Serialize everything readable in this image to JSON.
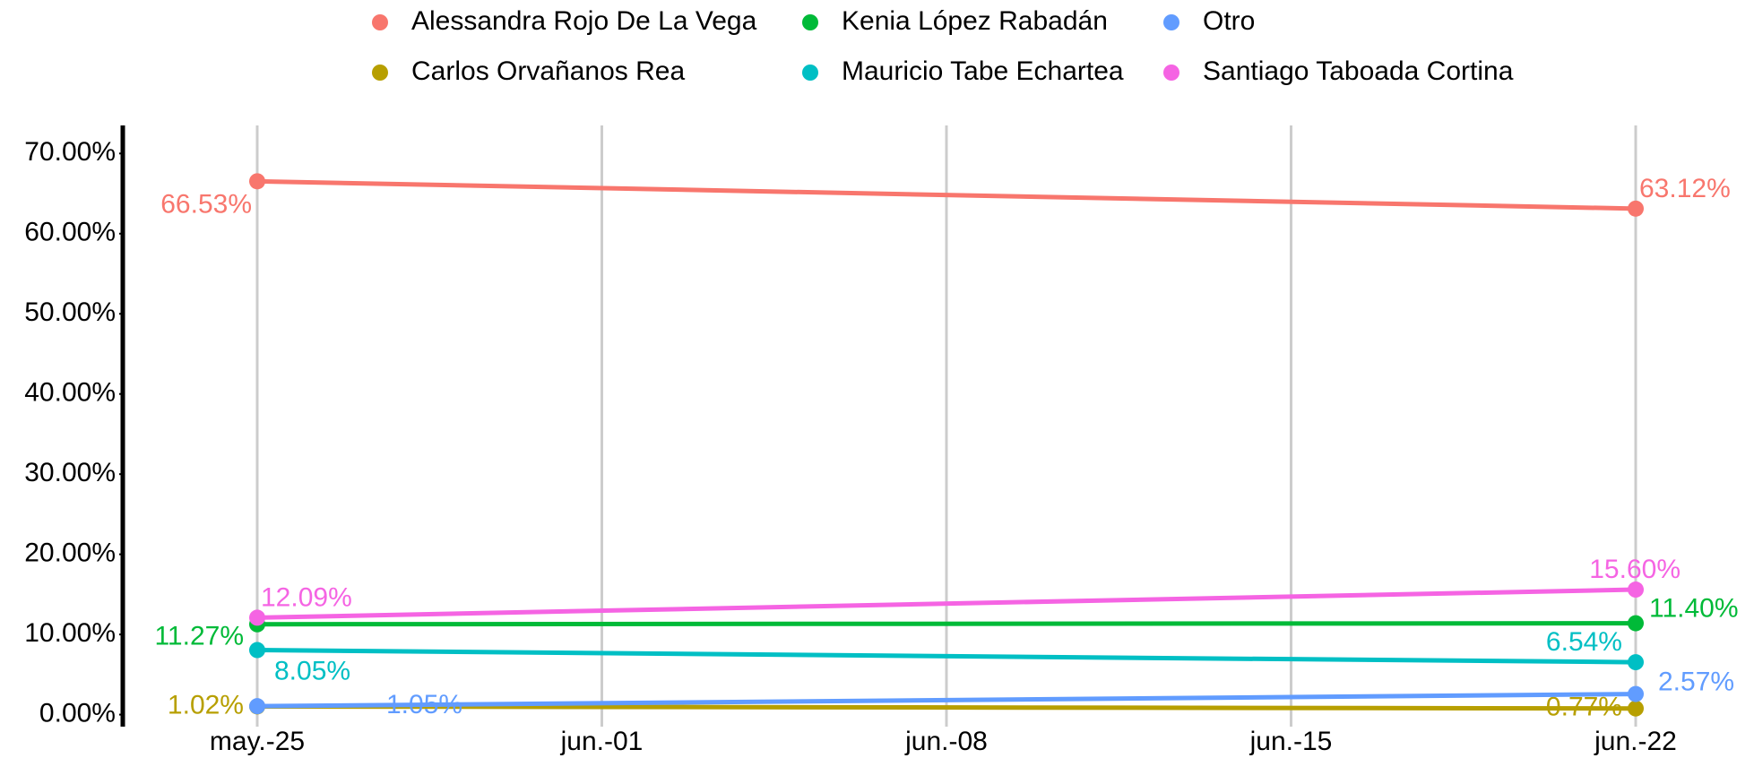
{
  "chart_data": {
    "type": "line",
    "x": [
      "may.-25",
      "jun.-22"
    ],
    "xticks": [
      "may.-25",
      "jun.-01",
      "jun.-08",
      "jun.-15",
      "jun.-22"
    ],
    "ylim": [
      -1.5,
      73.5
    ],
    "yticks": [
      {
        "value": 0,
        "label": "0.00%"
      },
      {
        "value": 10,
        "label": "10.00%"
      },
      {
        "value": 20,
        "label": "20.00%"
      },
      {
        "value": 30,
        "label": "30.00%"
      },
      {
        "value": 40,
        "label": "40.00%"
      },
      {
        "value": 50,
        "label": "50.00%"
      },
      {
        "value": 60,
        "label": "60.00%"
      },
      {
        "value": 70,
        "label": "70.00%"
      }
    ],
    "grid": true,
    "legend": "top",
    "series": [
      {
        "name": "Alessandra Rojo De La Vega",
        "color": "#F8766D",
        "values": [
          66.53,
          63.12
        ],
        "value_labels": [
          "66.53%",
          "63.12%"
        ]
      },
      {
        "name": "Carlos Orvañanos Rea",
        "color": "#B79F00",
        "values": [
          1.02,
          0.77
        ],
        "value_labels": [
          "1.02%",
          "0.77%"
        ]
      },
      {
        "name": "Kenia López Rabadán",
        "color": "#00BA38",
        "values": [
          11.27,
          11.4
        ],
        "value_labels": [
          "11.27%",
          "11.40%"
        ]
      },
      {
        "name": "Mauricio Tabe Echartea",
        "color": "#00BFC4",
        "values": [
          8.05,
          6.54
        ],
        "value_labels": [
          "8.05%",
          "6.54%"
        ]
      },
      {
        "name": "Otro",
        "color": "#619CFF",
        "values": [
          1.05,
          2.57
        ],
        "value_labels": [
          "1.05%",
          "2.57%"
        ]
      },
      {
        "name": "Santiago Taboada Cortina",
        "color": "#F564E3",
        "values": [
          12.09,
          15.6
        ],
        "value_labels": [
          "12.09%",
          "15.60%"
        ]
      }
    ]
  }
}
